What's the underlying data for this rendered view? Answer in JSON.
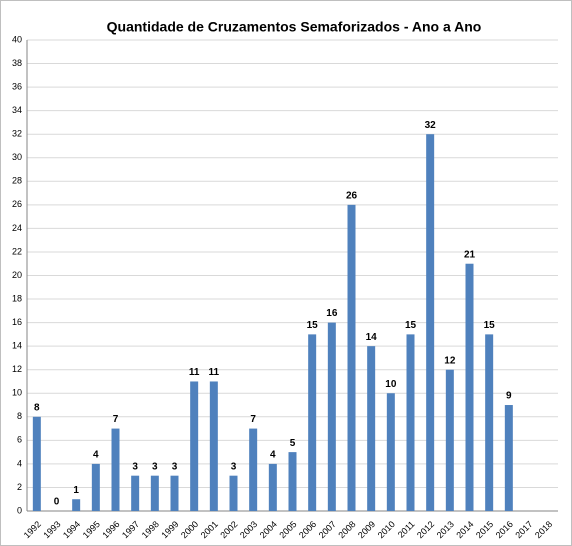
{
  "chart_data": {
    "type": "bar",
    "title": "Quantidade  de Cruzamentos  Semaforizados  - Ano a Ano",
    "categories": [
      "1992",
      "1993",
      "1994",
      "1995",
      "1996",
      "1997",
      "1998",
      "1999",
      "2000",
      "2001",
      "2002",
      "2003",
      "2004",
      "2005",
      "2006",
      "2007",
      "2008",
      "2009",
      "2010",
      "2011",
      "2012",
      "2013",
      "2014",
      "2015",
      "2016",
      "2017",
      "2018"
    ],
    "values": [
      8,
      0,
      1,
      4,
      7,
      3,
      3,
      3,
      11,
      11,
      3,
      7,
      4,
      5,
      15,
      16,
      26,
      14,
      10,
      15,
      32,
      12,
      21,
      15,
      9,
      null,
      null
    ],
    "color": "#4f81bd",
    "ylim": [
      0,
      40
    ],
    "yticks": [
      0,
      2,
      4,
      6,
      8,
      10,
      12,
      14,
      16,
      18,
      20,
      22,
      24,
      26,
      28,
      30,
      32,
      34,
      36,
      38,
      40
    ],
    "grid": true
  }
}
